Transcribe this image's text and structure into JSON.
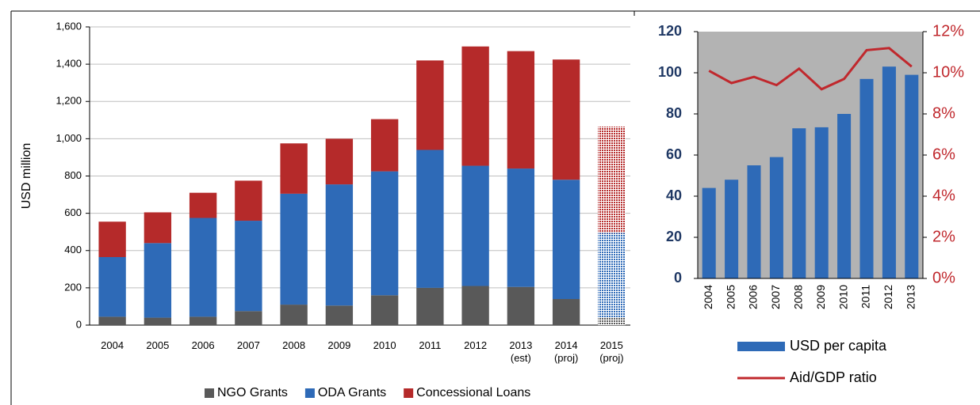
{
  "chart_data": [
    {
      "type": "stacked_bar",
      "y_label": "USD million",
      "categories": [
        "2004",
        "2005",
        "2006",
        "2007",
        "2008",
        "2009",
        "2010",
        "2011",
        "2012",
        "2013 (est)",
        "2014 (proj)",
        "2015 (proj)"
      ],
      "series": [
        {
          "name": "NGO Grants",
          "color": "#595959",
          "values": [
            45,
            40,
            45,
            75,
            110,
            105,
            160,
            200,
            210,
            205,
            140,
            40
          ]
        },
        {
          "name": "ODA Grants",
          "color": "#2e6ab7",
          "values": [
            320,
            400,
            530,
            485,
            595,
            650,
            665,
            740,
            645,
            635,
            640,
            455
          ]
        },
        {
          "name": "Concessional Loans",
          "color": "#b52a2a",
          "values": [
            190,
            165,
            135,
            215,
            270,
            245,
            280,
            480,
            640,
            630,
            645,
            570
          ]
        }
      ],
      "hatched": [
        11
      ],
      "ylim": [
        0,
        1600
      ],
      "yticks": [
        0,
        200,
        400,
        600,
        800,
        {
          "value": 1000,
          "label": "1,000"
        },
        {
          "value": 1200,
          "label": "1,200"
        },
        {
          "value": 1400,
          "label": "1,400"
        },
        {
          "value": 1600,
          "label": "1,600"
        }
      ],
      "grid": true,
      "legend": "bottom"
    },
    {
      "type": "bar_line",
      "categories": [
        "2004",
        "2005",
        "2006",
        "2007",
        "2008",
        "2009",
        "2010",
        "2011",
        "2012",
        "2013"
      ],
      "series": [
        {
          "name": "USD per capita",
          "color": "#2e6ab7",
          "values": [
            44,
            48,
            55,
            59,
            73,
            73.5,
            80,
            97,
            103,
            99
          ]
        },
        {
          "name": "Aid/GDP ratio",
          "color": "#c0282d",
          "axis": "y2",
          "values": [
            10.1,
            9.5,
            9.8,
            9.4,
            10.2,
            9.2,
            9.7,
            11.1,
            11.2,
            10.3
          ]
        }
      ],
      "ylim": [
        0,
        120
      ],
      "yticks": [
        0,
        20,
        40,
        60,
        80,
        100,
        120
      ],
      "y2lim": [
        0,
        12
      ],
      "y2ticks": [
        {
          "value": 0,
          "label": "0%"
        },
        {
          "value": 2,
          "label": "2%"
        },
        {
          "value": 4,
          "label": "4%"
        },
        {
          "value": 6,
          "label": "6%"
        },
        {
          "value": 8,
          "label": "8%"
        },
        {
          "value": 10,
          "label": "10%"
        },
        {
          "value": 12,
          "label": "12%"
        }
      ],
      "plot_background": "#b3b3b3",
      "legend": "bottom"
    }
  ]
}
